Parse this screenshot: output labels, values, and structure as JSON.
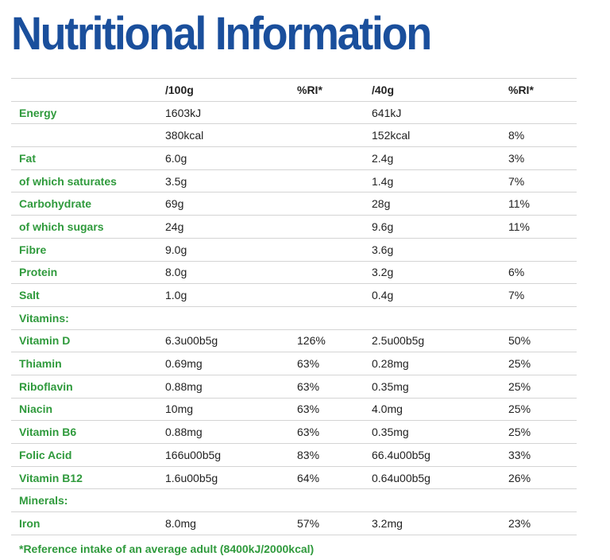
{
  "title": "Nutritional Information",
  "header": {
    "label": "",
    "per100": "/100g",
    "ri100": "%RI*",
    "per40": "/40g",
    "ri40": "%RI*"
  },
  "rows": [
    {
      "label": "Energy",
      "per100": "1603kJ",
      "ri100": "",
      "per40": "641kJ",
      "ri40": ""
    },
    {
      "label": "",
      "per100": "380kcal",
      "ri100": "",
      "per40": "152kcal",
      "ri40": "8%"
    },
    {
      "label": "Fat",
      "per100": "6.0g",
      "ri100": "",
      "per40": "2.4g",
      "ri40": "3%"
    },
    {
      "label": "of which saturates",
      "per100": "3.5g",
      "ri100": "",
      "per40": "1.4g",
      "ri40": "7%"
    },
    {
      "label": "Carbohydrate",
      "per100": "69g",
      "ri100": "",
      "per40": "28g",
      "ri40": "11%"
    },
    {
      "label": "of which sugars",
      "per100": "24g",
      "ri100": "",
      "per40": "9.6g",
      "ri40": "11%"
    },
    {
      "label": "Fibre",
      "per100": "9.0g",
      "ri100": "",
      "per40": "3.6g",
      "ri40": ""
    },
    {
      "label": "Protein",
      "per100": "8.0g",
      "ri100": "",
      "per40": "3.2g",
      "ri40": "6%"
    },
    {
      "label": "Salt",
      "per100": "1.0g",
      "ri100": "",
      "per40": "0.4g",
      "ri40": "7%"
    },
    {
      "label": "Vitamins:",
      "per100": "",
      "ri100": "",
      "per40": "",
      "ri40": ""
    },
    {
      "label": "Vitamin D",
      "per100": "6.3u00b5g",
      "ri100": "126%",
      "per40": "2.5u00b5g",
      "ri40": "50%"
    },
    {
      "label": "Thiamin",
      "per100": "0.69mg",
      "ri100": "63%",
      "per40": "0.28mg",
      "ri40": "25%"
    },
    {
      "label": "Riboflavin",
      "per100": "0.88mg",
      "ri100": "63%",
      "per40": "0.35mg",
      "ri40": "25%"
    },
    {
      "label": "Niacin",
      "per100": "10mg",
      "ri100": "63%",
      "per40": "4.0mg",
      "ri40": "25%"
    },
    {
      "label": "Vitamin B6",
      "per100": "0.88mg",
      "ri100": "63%",
      "per40": "0.35mg",
      "ri40": "25%"
    },
    {
      "label": "Folic Acid",
      "per100": "166u00b5g",
      "ri100": "83%",
      "per40": "66.4u00b5g",
      "ri40": "33%"
    },
    {
      "label": "Vitamin B12",
      "per100": "1.6u00b5g",
      "ri100": "64%",
      "per40": "0.64u00b5g",
      "ri40": "26%"
    },
    {
      "label": "Minerals:",
      "per100": "",
      "ri100": "",
      "per40": "",
      "ri40": ""
    },
    {
      "label": "Iron",
      "per100": "8.0mg",
      "ri100": "57%",
      "per40": "3.2mg",
      "ri40": "23%"
    }
  ],
  "footnote": "*Reference intake of an average adult (8400kJ/2000kcal)",
  "colors": {
    "title": "#1a4f9c",
    "label": "#2f9a3c",
    "rule": "#d4d4d4"
  }
}
